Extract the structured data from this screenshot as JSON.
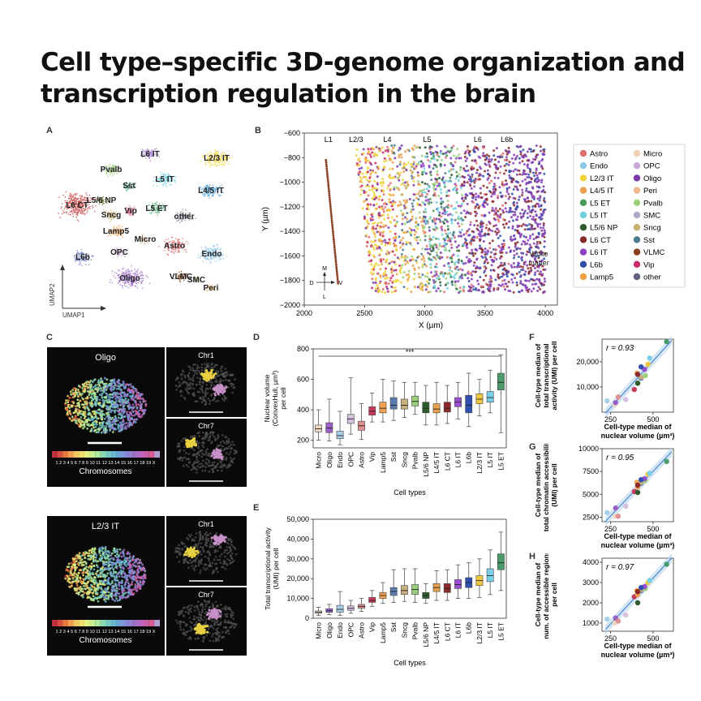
{
  "title_line1": "Cell type–specific 3D-genome organization and",
  "title_line2": "transcription regulation in the brain",
  "panels": {
    "A": "A",
    "B": "B",
    "C": "C",
    "D": "D",
    "E": "E",
    "F": "F",
    "G": "G",
    "H": "H"
  },
  "umap": {
    "xlabel": "UMAP1",
    "ylabel": "UMAP2",
    "clusters": [
      {
        "label": "L6 IT",
        "color": "#a57ed6"
      },
      {
        "label": "L2/3 IT",
        "color": "#f0d33a"
      },
      {
        "label": "Pvalb",
        "color": "#9ed07c"
      },
      {
        "label": "Sst",
        "color": "#3b9a80"
      },
      {
        "label": "L5 IT",
        "color": "#6fd0e0"
      },
      {
        "label": "L4/5 IT",
        "color": "#5aa8d8"
      },
      {
        "label": "L6 CT",
        "color": "#c74a4a"
      },
      {
        "label": "L5/6 NP",
        "color": "#7e8e4a"
      },
      {
        "label": "Sncg",
        "color": "#c7b070"
      },
      {
        "label": "Vip",
        "color": "#d85a8a"
      },
      {
        "label": "L5 ET",
        "color": "#55b07a"
      },
      {
        "label": "other",
        "color": "#9090a0"
      },
      {
        "label": "Lamp5",
        "color": "#f0a050"
      },
      {
        "label": "Micro",
        "color": "#e0c8a8"
      },
      {
        "label": "Astro",
        "color": "#e07070"
      },
      {
        "label": "OPC",
        "color": "#c8a8d8"
      },
      {
        "label": "Endo",
        "color": "#90c8e8"
      },
      {
        "label": "L6b",
        "color": "#7080c0"
      },
      {
        "label": "VLMC",
        "color": "#8a5030"
      },
      {
        "label": "SMC",
        "color": "#c0b090"
      },
      {
        "label": "Peri",
        "color": "#f0c080"
      },
      {
        "label": "Oligo",
        "color": "#a070c8"
      }
    ]
  },
  "spatial": {
    "xlabel": "X (µm)",
    "ylabel": "Y (µm)",
    "xticks": [
      "2000",
      "2500",
      "3000",
      "3500",
      "4000"
    ],
    "yticks": [
      "−600",
      "−800",
      "−1000",
      "−1200",
      "−1400",
      "−1600",
      "−1800",
      "−2000"
    ],
    "layers": [
      "L1",
      "L2/3",
      "L4",
      "L5",
      "L6",
      "L6b"
    ],
    "white_matter_1": "White",
    "white_matter_2": "matter",
    "compass": {
      "M": "M",
      "D": "D",
      "V": "V",
      "L": "L"
    },
    "legend": [
      {
        "name": "Astro",
        "color": "#e07070"
      },
      {
        "name": "Micro",
        "color": "#f0d0b0"
      },
      {
        "name": "Endo",
        "color": "#90c8e8"
      },
      {
        "name": "OPC",
        "color": "#c8a8d8"
      },
      {
        "name": "L2/3 IT",
        "color": "#f0d33a"
      },
      {
        "name": "Oligo",
        "color": "#7a3aa8"
      },
      {
        "name": "L4/5 IT",
        "color": "#e8a050"
      },
      {
        "name": "Peri",
        "color": "#f0b890"
      },
      {
        "name": "L5 ET",
        "color": "#4a9a5a"
      },
      {
        "name": "Pvalb",
        "color": "#9ed07c"
      },
      {
        "name": "L5 IT",
        "color": "#6fd0e0"
      },
      {
        "name": "SMC",
        "color": "#b0a8c8"
      },
      {
        "name": "L5/6 NP",
        "color": "#2e5a2e"
      },
      {
        "name": "Sncg",
        "color": "#c7b070"
      },
      {
        "name": "L6 CT",
        "color": "#8a2a2a"
      },
      {
        "name": "Sst",
        "color": "#4a7a90"
      },
      {
        "name": "L6 IT",
        "color": "#8a40c0"
      },
      {
        "name": "VLMC",
        "color": "#8a4020"
      },
      {
        "name": "L6b",
        "color": "#3050a8"
      },
      {
        "name": "Vip",
        "color": "#c82a6a"
      },
      {
        "name": "Lamp5",
        "color": "#f0a040"
      },
      {
        "name": "other",
        "color": "#606080"
      }
    ]
  },
  "panelC": {
    "top_title": "Oligo",
    "bottom_title": "L2/3 IT",
    "chr1": "Chr1",
    "chr7": "Chr7",
    "colorbar_ticks": "1 2 3 4 5 6 7 8 9 10 11 12 13 14 15 16 17 18 19 X",
    "colorbar_label": "Chromosomes"
  },
  "chart_data": [
    {
      "panel": "D",
      "type": "box",
      "ylabel": "Nuclear volume (ConvexHull, µm³) per cell",
      "ylabel_1": "Nuclear volume",
      "ylabel_2": "(ConvexHull, µm³)",
      "ylabel_3": "per cell",
      "xlabel": "Cell types",
      "ylim": [
        150,
        800
      ],
      "yticks": [
        200,
        400,
        600,
        800
      ],
      "significance": "***",
      "categories": [
        "Micro",
        "Oligo",
        "Endo",
        "OPC",
        "Astro",
        "Vip",
        "Lamp5",
        "Sst",
        "Sncg",
        "Pvalb",
        "L5/6 NP",
        "L4/5 IT",
        "L6 CT",
        "L6 IT",
        "L6b",
        "L2/3 IT",
        "L5 IT",
        "L5 ET"
      ],
      "colors": [
        "#f0d8c0",
        "#9a60c8",
        "#a8d0e8",
        "#d8c0e0",
        "#e09090",
        "#c83a5a",
        "#f0a050",
        "#5a7ab0",
        "#c8b080",
        "#9ad07c",
        "#2e5a2e",
        "#e8a050",
        "#8a2a2a",
        "#9a50d0",
        "#3050b0",
        "#f0c840",
        "#7ad0e8",
        "#4a9a6a"
      ],
      "median": [
        275,
        280,
        230,
        340,
        295,
        390,
        410,
        430,
        430,
        455,
        410,
        405,
        410,
        450,
        430,
        470,
        480,
        580
      ],
      "q1": [
        255,
        250,
        210,
        310,
        265,
        365,
        380,
        405,
        405,
        425,
        380,
        380,
        385,
        420,
        380,
        440,
        450,
        530
      ],
      "q3": [
        300,
        315,
        260,
        370,
        325,
        420,
        450,
        480,
        470,
        490,
        450,
        440,
        450,
        480,
        495,
        505,
        520,
        640
      ],
      "whislo": [
        200,
        195,
        170,
        240,
        205,
        320,
        320,
        330,
        350,
        370,
        300,
        300,
        310,
        340,
        290,
        360,
        380,
        250
      ],
      "whishi": [
        400,
        470,
        390,
        610,
        440,
        510,
        600,
        590,
        580,
        580,
        560,
        580,
        560,
        580,
        640,
        600,
        660,
        760
      ]
    },
    {
      "panel": "E",
      "type": "box",
      "ylabel": "Total transcriptional activity (UMI) per cell",
      "ylabel_1": "Total transcriptional activity",
      "ylabel_2": "(UMI) per cell",
      "xlabel": "Cell types",
      "ylim": [
        0,
        50000
      ],
      "yticks": [
        "0",
        "10,000",
        "20,000",
        "30,000",
        "40,000",
        "50,000"
      ],
      "categories": [
        "Micro",
        "Oligo",
        "Endo",
        "OPC",
        "Astro",
        "Vip",
        "Lamp5",
        "Sst",
        "Sncg",
        "Pvalb",
        "L5/6 NP",
        "L4/5 IT",
        "L6 CT",
        "L6 IT",
        "L6b",
        "L2/3 IT",
        "L5 IT",
        "L5 ET"
      ],
      "colors": [
        "#f0d8c0",
        "#9a60c8",
        "#a8d0e8",
        "#d8c0e0",
        "#e09090",
        "#c83a5a",
        "#f0a050",
        "#5a7ab0",
        "#c8b080",
        "#9ad07c",
        "#2e5a2e",
        "#e8a050",
        "#8a2a2a",
        "#9a50d0",
        "#3050b0",
        "#f0c840",
        "#7ad0e8",
        "#4a9a6a"
      ],
      "median": [
        3000,
        3800,
        4500,
        5000,
        6000,
        9000,
        11500,
        13500,
        14000,
        14500,
        11500,
        15500,
        15000,
        17000,
        18000,
        19000,
        21500,
        28000
      ],
      "q1": [
        2500,
        3000,
        3000,
        4000,
        5000,
        8000,
        10000,
        11500,
        12000,
        12000,
        10000,
        13500,
        13000,
        15000,
        15500,
        16500,
        18500,
        24500
      ],
      "q3": [
        3700,
        4800,
        6500,
        6200,
        7000,
        10500,
        13000,
        15500,
        16500,
        17000,
        13000,
        17500,
        17500,
        19500,
        20500,
        21500,
        25000,
        32500
      ],
      "whislo": [
        1500,
        1800,
        1500,
        2500,
        3500,
        6000,
        7500,
        8000,
        8500,
        8000,
        7500,
        9000,
        9000,
        10000,
        10000,
        10500,
        12000,
        14000
      ],
      "whishi": [
        5500,
        7000,
        13500,
        9000,
        10000,
        14000,
        18000,
        24500,
        25000,
        25000,
        17500,
        24000,
        24500,
        27000,
        28000,
        30000,
        34500,
        43500
      ]
    },
    {
      "panel": "F",
      "type": "scatter",
      "ylabel_1": "Cell-type median of",
      "ylabel_2": "total transcriptional",
      "ylabel_3": "activity (UMI) per cell",
      "xlabel_1": "Cell-type median of",
      "xlabel_2": "nuclear volume (µm³)",
      "annotation": "r = 0.93",
      "xlim": [
        200,
        620
      ],
      "ylim": [
        0,
        29000
      ],
      "xticks": [
        250,
        500
      ],
      "yticks": [
        "10,000",
        "20,000"
      ],
      "ytick_values": [
        10000,
        20000
      ],
      "x": [
        275,
        280,
        230,
        340,
        295,
        390,
        410,
        430,
        430,
        455,
        410,
        405,
        410,
        450,
        430,
        470,
        480,
        580
      ],
      "y": [
        3000,
        3800,
        4500,
        5000,
        6000,
        9000,
        11500,
        13500,
        14000,
        14500,
        11500,
        15500,
        15000,
        17000,
        18000,
        19000,
        21500,
        28000
      ]
    },
    {
      "panel": "G",
      "type": "scatter",
      "ylabel_1": "Cell-type median of",
      "ylabel_2": "total chromatin accessibility",
      "ylabel_3": "(UMI) per cell",
      "xlabel_1": "Cell-type median of",
      "xlabel_2": "nuclear volume (µm³)",
      "annotation": "r = 0.95",
      "xlim": [
        200,
        620
      ],
      "ylim": [
        2000,
        10000
      ],
      "xticks": [
        250,
        500
      ],
      "yticks": [
        "2500",
        "5000",
        "7500",
        "10000"
      ],
      "ytick_values": [
        2500,
        5000,
        7500,
        10000
      ],
      "x": [
        275,
        280,
        230,
        340,
        295,
        390,
        410,
        430,
        430,
        455,
        410,
        405,
        410,
        450,
        430,
        470,
        480,
        580
      ],
      "y": [
        2600,
        3500,
        3000,
        3700,
        2600,
        5300,
        5800,
        6200,
        6300,
        6500,
        5200,
        6300,
        6000,
        6700,
        6600,
        7200,
        7300,
        8600
      ]
    },
    {
      "panel": "H",
      "type": "scatter",
      "ylabel_1": "Cell-type median of",
      "ylabel_2": "num. of accessible regions",
      "ylabel_3": "per cell",
      "xlabel_1": "Cell-type median of",
      "xlabel_2": "nuclear volume (µm³)",
      "annotation": "r = 0.97",
      "xlim": [
        200,
        620
      ],
      "ylim": [
        600,
        4200
      ],
      "xticks": [
        250,
        500
      ],
      "yticks": [
        "1000",
        "2000",
        "3000",
        "4000"
      ],
      "ytick_values": [
        1000,
        2000,
        3000,
        4000
      ],
      "x": [
        275,
        280,
        230,
        340,
        295,
        390,
        410,
        430,
        430,
        455,
        410,
        405,
        410,
        450,
        430,
        470,
        480,
        580
      ],
      "y": [
        1000,
        1250,
        1200,
        1400,
        1100,
        2300,
        2400,
        2600,
        2650,
        2700,
        2000,
        2600,
        2550,
        2800,
        2750,
        3000,
        3100,
        3900
      ]
    }
  ]
}
